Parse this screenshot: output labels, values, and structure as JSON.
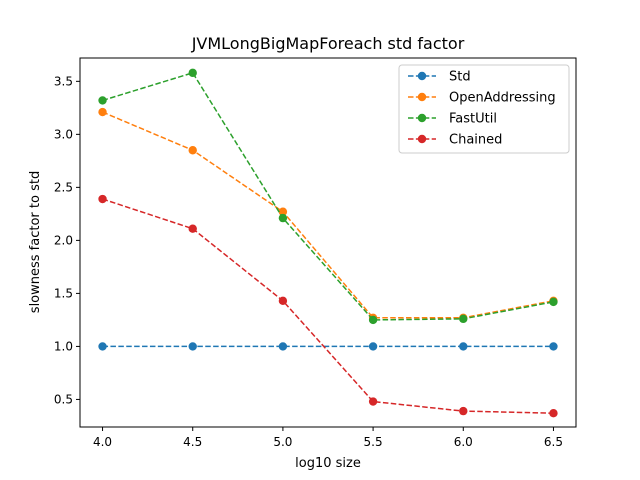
{
  "chart_data": {
    "type": "line",
    "title": "JVMLongBigMapForeach std factor",
    "xlabel": "log10 size",
    "ylabel": "slowness factor to std",
    "x": [
      4.0,
      4.5,
      5.0,
      5.5,
      6.0,
      6.5
    ],
    "x_tick_labels": [
      "4.0",
      "4.5",
      "5.0",
      "5.5",
      "6.0",
      "6.5"
    ],
    "y_ticks": [
      0.5,
      1.0,
      1.5,
      2.0,
      2.5,
      3.0,
      3.5
    ],
    "y_tick_labels": [
      "0.5",
      "1.0",
      "1.5",
      "2.0",
      "2.5",
      "3.0",
      "3.5"
    ],
    "xlim": [
      3.875,
      6.625
    ],
    "ylim": [
      0.24,
      3.72
    ],
    "grid": false,
    "legend_position": "top-right",
    "series": [
      {
        "name": "Std",
        "color": "#1f77b4",
        "values": [
          1.0,
          1.0,
          1.0,
          1.0,
          1.0,
          1.0
        ]
      },
      {
        "name": "OpenAddressing",
        "color": "#ff7f0e",
        "values": [
          3.21,
          2.85,
          2.27,
          1.27,
          1.27,
          1.43
        ]
      },
      {
        "name": "FastUtil",
        "color": "#2ca02c",
        "values": [
          3.32,
          3.58,
          2.21,
          1.25,
          1.26,
          1.42
        ]
      },
      {
        "name": "Chained",
        "color": "#d62728",
        "values": [
          2.39,
          2.11,
          1.43,
          0.48,
          0.39,
          0.37
        ]
      }
    ]
  }
}
